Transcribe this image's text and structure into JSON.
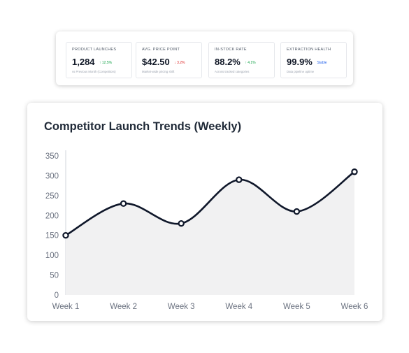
{
  "kpis": [
    {
      "label": "PRODUCT LAUNCHES",
      "value": "1,284",
      "delta": "↑ 12.5%",
      "delta_color": "#16a34a",
      "sub": "vs Previous Month (Competitors)"
    },
    {
      "label": "AVG. PRICE POINT",
      "value": "$42.50",
      "delta": "↓ 3.2%",
      "delta_color": "#dc2626",
      "sub": "Market-wide pricing shift"
    },
    {
      "label": "IN-STOCK RATE",
      "value": "88.2%",
      "delta": "↑ 4.1%",
      "delta_color": "#16a34a",
      "sub": "Across tracked categories"
    },
    {
      "label": "EXTRACTION HEALTH",
      "value": "99.9%",
      "delta": "Stable",
      "delta_color": "#2563eb",
      "sub": "Data pipeline uptime"
    }
  ],
  "chart": {
    "title": "Competitor Launch Trends (Weekly)"
  },
  "chart_data": {
    "type": "area",
    "title": "Competitor Launch Trends (Weekly)",
    "categories": [
      "Week 1",
      "Week 2",
      "Week 3",
      "Week 4",
      "Week 5",
      "Week 6"
    ],
    "series": [
      {
        "values": [
          150,
          230,
          180,
          290,
          210,
          310
        ]
      }
    ],
    "ylim": [
      0,
      350
    ],
    "yticks": [
      0,
      50,
      100,
      150,
      200,
      250,
      300,
      350
    ],
    "grid": false,
    "legend": "none",
    "line_color": "#0f172a",
    "fill_color": "#f1f1f2",
    "marker_fill": "#ffffff"
  }
}
